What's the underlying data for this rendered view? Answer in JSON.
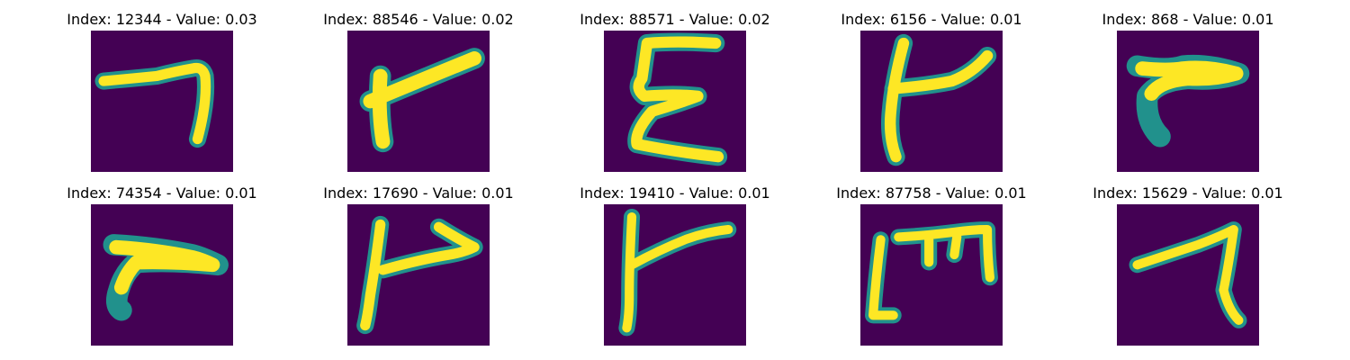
{
  "colors": {
    "background": "#440154",
    "stroke_core": "#fde725",
    "stroke_edge": "#35b779",
    "stroke_mid": "#21918c"
  },
  "panels": [
    {
      "index_label": "Index: 12344 - Value: 0.03",
      "glyph": "seven-like-stroke"
    },
    {
      "index_label": "Index: 88546 - Value: 0.02",
      "glyph": "slanted-t-stroke"
    },
    {
      "index_label": "Index: 88571 - Value: 0.02",
      "glyph": "epsilon-stroke"
    },
    {
      "index_label": "Index: 6156 - Value: 0.01",
      "glyph": "slanted-t-stroke"
    },
    {
      "index_label": "Index: 868 - Value: 0.01",
      "glyph": "hook-stroke"
    },
    {
      "index_label": "Index: 74354 - Value: 0.01",
      "glyph": "hook-stroke"
    },
    {
      "index_label": "Index: 17690 - Value: 0.01",
      "glyph": "flag-stroke"
    },
    {
      "index_label": "Index: 19410 - Value: 0.01",
      "glyph": "slanted-t-stroke"
    },
    {
      "index_label": "Index: 87758 - Value: 0.01",
      "glyph": "m-stroke"
    },
    {
      "index_label": "Index: 15629 - Value: 0.01",
      "glyph": "seven-like-stroke"
    }
  ]
}
